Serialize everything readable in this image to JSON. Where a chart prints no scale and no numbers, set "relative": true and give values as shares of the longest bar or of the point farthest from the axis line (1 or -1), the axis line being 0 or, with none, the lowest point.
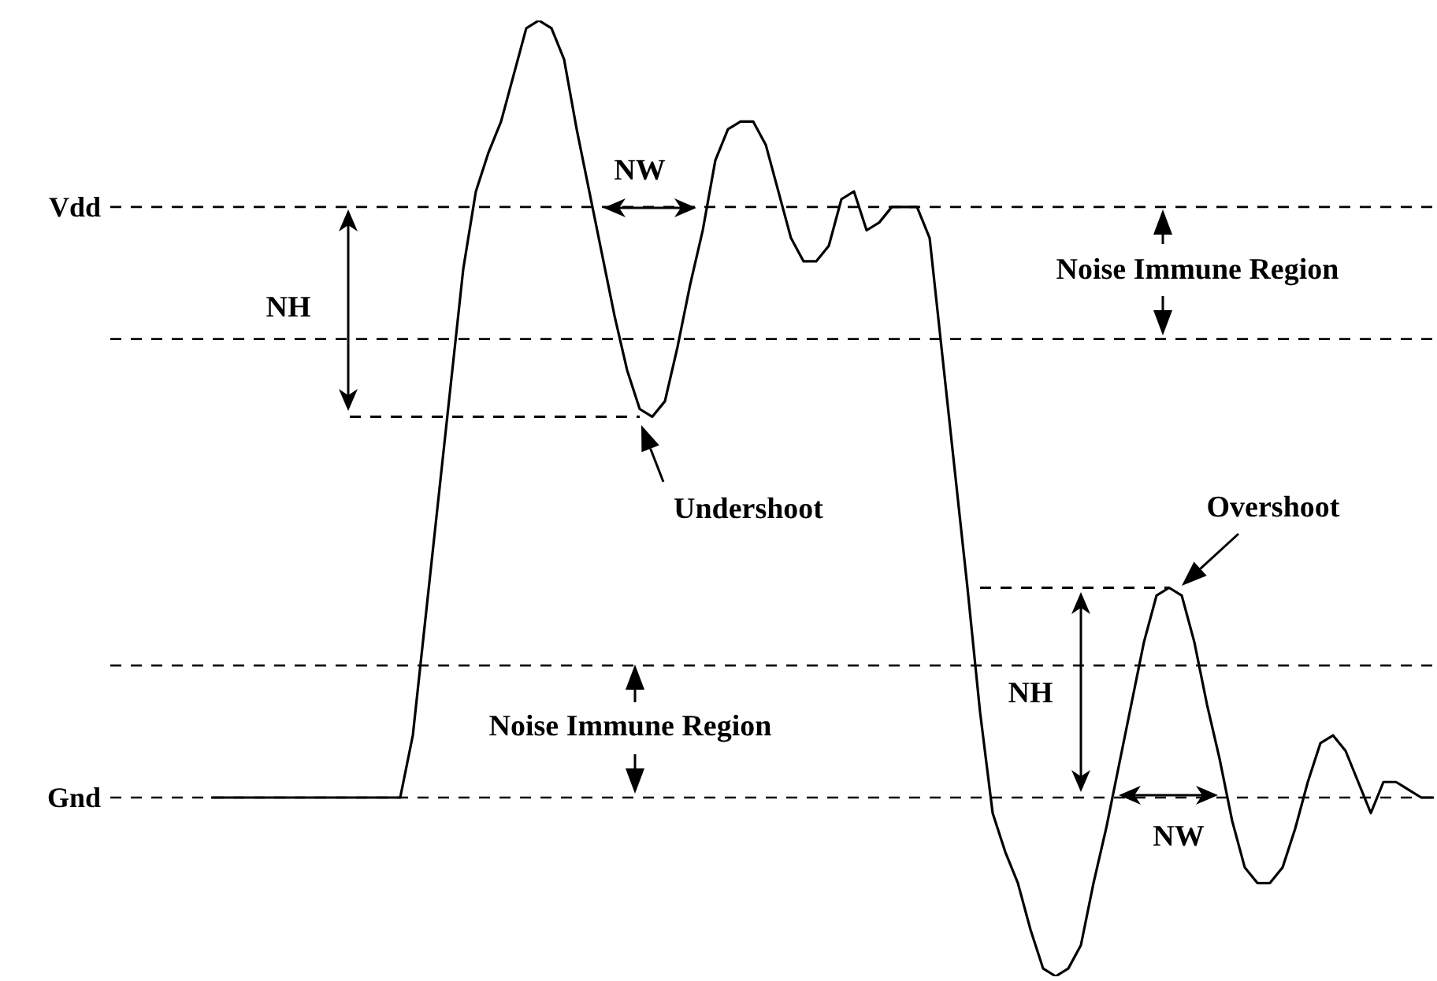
{
  "chart_data": {
    "type": "line",
    "relative": true,
    "categories": [
      null,
      null,
      null,
      null,
      null,
      null,
      null,
      null,
      null,
      null,
      null,
      null,
      null,
      null,
      null,
      null,
      null,
      null,
      null,
      null,
      null,
      null,
      null,
      null,
      null,
      null,
      null,
      null,
      null,
      null,
      null,
      null,
      null,
      null,
      null,
      null,
      null,
      null,
      null,
      null,
      null,
      null,
      null,
      null,
      null,
      null,
      null,
      null,
      null,
      null,
      null,
      null,
      null,
      null,
      null,
      null,
      null,
      null,
      null,
      null,
      null,
      null,
      null,
      null,
      null,
      null,
      null,
      null,
      null,
      null,
      null,
      null,
      null,
      null,
      null,
      null,
      null,
      null,
      null,
      null,
      null,
      null,
      null,
      null,
      null,
      null,
      null,
      null,
      null,
      null,
      null,
      null,
      null,
      null,
      null,
      null,
      null,
      null
    ],
    "series": [
      {
        "color": "#000000",
        "line_style": "solid",
        "values": [
          0,
          0,
          0,
          0,
          0,
          0,
          0,
          0,
          0,
          0,
          0,
          0,
          0,
          0,
          0,
          0,
          0.08,
          0.23,
          0.38,
          0.53,
          0.68,
          0.78,
          0.83,
          0.87,
          0.93,
          0.99,
          1,
          0.99,
          0.95,
          0.86,
          0.78,
          0.7,
          0.62,
          0.55,
          0.5,
          0.49,
          0.51,
          0.58,
          0.66,
          0.73,
          0.82,
          0.86,
          0.87,
          0.87,
          0.84,
          0.78,
          0.72,
          0.69,
          0.69,
          0.71,
          0.77,
          0.78,
          0.73,
          0.74,
          0.76,
          0.76,
          0.76,
          0.72,
          0.57,
          0.42,
          0.27,
          0.11,
          -0.02,
          -0.07,
          -0.11,
          -0.17,
          -0.22,
          -0.23,
          -0.22,
          -0.19,
          -0.11,
          -0.04,
          0.04,
          0.12,
          0.2,
          0.26,
          0.27,
          0.26,
          0.2,
          0.12,
          0.05,
          -0.03,
          -0.09,
          -0.11,
          -0.11,
          -0.09,
          -0.04,
          0.02,
          0.07,
          0.08,
          0.06,
          0.02,
          -0.02,
          0.02,
          0.02,
          0.01,
          0,
          0
        ]
      },
      {
        "color": "#000000",
        "line_style": "dashed",
        "values": [
          null,
          null,
          null,
          null,
          null,
          null,
          null,
          null,
          null,
          null,
          null,
          0.49,
          0.49,
          0.49,
          0.49,
          0.49,
          0.49,
          0.49,
          0.49,
          0.49,
          0.49,
          0.49,
          0.49,
          0.49,
          0.49,
          0.49,
          0.49,
          0.49,
          0.49,
          0.49,
          0.49,
          0.49,
          0.49,
          0.49,
          0.49,
          null,
          null,
          null,
          null,
          null,
          null,
          null,
          null,
          null,
          null,
          null,
          null,
          null,
          null,
          null,
          null,
          null,
          null,
          null,
          null,
          null,
          null,
          null,
          null,
          null,
          null,
          null,
          null,
          null,
          null,
          null,
          null,
          null,
          null,
          null,
          null,
          null,
          null,
          null,
          null,
          null,
          null,
          null,
          null,
          null,
          null,
          null,
          null,
          null,
          null,
          null,
          null,
          null,
          null,
          null,
          null,
          null,
          null,
          null,
          null,
          null,
          null,
          null
        ]
      },
      {
        "color": "#000000",
        "line_style": "dashed",
        "values": [
          null,
          null,
          null,
          null,
          null,
          null,
          null,
          null,
          null,
          null,
          null,
          null,
          null,
          null,
          null,
          null,
          null,
          null,
          null,
          null,
          null,
          null,
          null,
          null,
          null,
          null,
          null,
          null,
          null,
          null,
          null,
          null,
          null,
          null,
          null,
          null,
          null,
          null,
          null,
          null,
          null,
          null,
          null,
          null,
          null,
          null,
          null,
          null,
          null,
          null,
          null,
          null,
          null,
          null,
          null,
          null,
          null,
          null,
          null,
          null,
          null,
          0.27,
          0.27,
          0.27,
          0.27,
          0.27,
          0.27,
          0.27,
          0.27,
          0.27,
          0.27,
          0.27,
          0.27,
          0.27,
          0.27,
          0.27,
          0.27,
          null,
          null,
          null,
          null,
          null,
          null,
          null,
          null,
          null,
          null,
          null,
          null,
          null,
          null,
          null,
          null,
          null,
          null,
          null,
          null,
          null
        ]
      }
    ],
    "ref_lines": [
      {
        "axis": "y",
        "value": 0.76,
        "label": "Vdd",
        "color": "#000000",
        "line_style": "dashed"
      },
      {
        "axis": "y",
        "value": 0.59,
        "color": "#000000",
        "line_style": "dashed"
      },
      {
        "axis": "y",
        "value": 0.17,
        "color": "#000000",
        "line_style": "dashed"
      },
      {
        "axis": "y",
        "value": 0,
        "label": "Gnd",
        "color": "#000000",
        "line_style": "dashed"
      }
    ],
    "annotations": [
      "NH",
      "NW",
      "Noise Immune Region",
      "Undershoot",
      "Overshoot",
      "Noise Immune Region",
      "NH",
      "NW"
    ]
  }
}
